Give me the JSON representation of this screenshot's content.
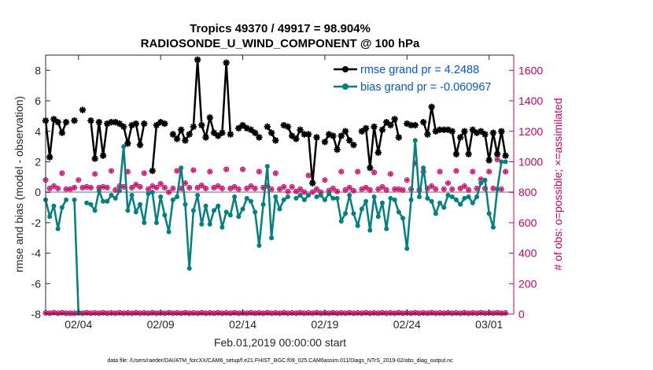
{
  "chart_data": {
    "type": "line",
    "title_line1": "Tropics 49370 / 49917 = 98.904%",
    "title_line2": "RADIOSONDE_U_WIND_COMPONENT @ 100 hPa",
    "xlabel": "Feb.01,2019 00:00:00 start",
    "ylabel_left": "rmse and bias (model - observation)",
    "ylabel_right": "# of obs: o=possible; ×=assimilated",
    "footer": "data file: /Users/raeder/DAI/ATM_forcXX/CAM6_setup/f.e21.FHIST_BGC.f09_025.CAM6assim.011/Diags_NTrS_2019-02/obs_diag_output.nc",
    "xlim": [
      1,
      29.5
    ],
    "ylim_left": [
      -8,
      9
    ],
    "ylim_right": [
      0,
      1700
    ],
    "x_ticks": [
      3,
      8,
      13,
      18,
      23,
      28
    ],
    "x_tick_labels": [
      "02/04",
      "02/09",
      "02/14",
      "02/19",
      "02/24",
      "03/01"
    ],
    "y_left_ticks": [
      -8,
      -6,
      -4,
      -2,
      0,
      2,
      4,
      6,
      8
    ],
    "y_left_tick_labels": [
      "-8",
      "-6",
      "-4",
      "-2",
      "0",
      "2",
      "4",
      "6",
      "8"
    ],
    "y_right_ticks": [
      0,
      200,
      400,
      600,
      800,
      1000,
      1200,
      1400,
      1600
    ],
    "y_right_tick_labels": [
      "0",
      "200",
      "400",
      "600",
      "800",
      "1000",
      "1200",
      "1400",
      "1600"
    ],
    "legend": [
      {
        "label": "rmse grand pr = 4.2488",
        "color": "#000000"
      },
      {
        "label": "bias grand pr = -0.060967",
        "color": "#008080"
      }
    ],
    "colors": {
      "rmse": "#000000",
      "bias": "#008080",
      "obs": "#cc0066",
      "legend_text": "#0055ee",
      "zero_line": "#b0b0b0"
    },
    "series": [
      {
        "name": "rmse",
        "color": "#000000",
        "x": [
          1.0,
          1.25,
          1.5,
          1.75,
          2.0,
          2.25,
          2.5,
          2.75,
          3.0,
          3.25,
          3.5,
          3.75,
          4.0,
          4.25,
          4.5,
          4.75,
          5.0,
          5.25,
          5.5,
          5.75,
          6.0,
          6.25,
          6.5,
          6.75,
          7.0,
          7.25,
          7.5,
          7.75,
          8.0,
          8.25,
          8.5,
          8.75,
          9.0,
          9.25,
          9.5,
          9.75,
          10.0,
          10.25,
          10.5,
          10.75,
          11.0,
          11.25,
          11.5,
          11.75,
          12.0,
          12.25,
          12.5,
          12.75,
          13.0,
          13.25,
          13.5,
          13.75,
          14.0,
          14.25,
          14.5,
          14.75,
          15.0,
          15.25,
          15.5,
          15.75,
          16.0,
          16.25,
          16.5,
          16.75,
          17.0,
          17.25,
          17.5,
          17.75,
          18.0,
          18.25,
          18.5,
          18.75,
          19.0,
          19.25,
          19.5,
          19.75,
          20.0,
          20.25,
          20.5,
          20.75,
          21.0,
          21.25,
          21.5,
          21.75,
          22.0,
          22.25,
          22.5,
          22.75,
          23.0,
          23.25,
          23.5,
          23.75,
          24.0,
          24.25,
          24.5,
          24.75,
          25.0,
          25.25,
          25.5,
          25.75,
          26.0,
          26.25,
          26.5,
          26.75,
          27.0,
          27.25,
          27.5,
          27.75,
          28.0,
          28.25,
          28.5,
          28.75,
          29.0
        ],
        "values": [
          4.7,
          2.3,
          4.8,
          4.6,
          3.9,
          4.6,
          null,
          4.7,
          null,
          5.4,
          null,
          4.7,
          2.2,
          4.6,
          2.4,
          4.5,
          4.6,
          4.6,
          4.5,
          4.3,
          3.2,
          4.4,
          4.5,
          3.1,
          4.5,
          null,
          1.4,
          4.4,
          4.6,
          4.5,
          null,
          3.8,
          3.5,
          4.1,
          3.4,
          3.8,
          4.3,
          8.7,
          4.4,
          3.6,
          4.9,
          3.9,
          3.7,
          3.9,
          8.5,
          3.8,
          null,
          4.2,
          4.4,
          4.2,
          4.1,
          3.9,
          3.6,
          null,
          4.3,
          3.9,
          3.4,
          null,
          4.4,
          4.3,
          3.7,
          3.5,
          4.1,
          3.8,
          3.8,
          0.6,
          3.6,
          null,
          3.3,
          3.8,
          3.7,
          2.8,
          3.7,
          4.0,
          3.4,
          3.1,
          null,
          4.0,
          4.2,
          1.6,
          4.3,
          2.6,
          4.1,
          4.6,
          4.4,
          4.8,
          3.6,
          null,
          4.5,
          4.4,
          4.4,
          null,
          4.6,
          3.8,
          5.6,
          4.0,
          4.1,
          4.1,
          4.1,
          4.0,
          2.5,
          3.6,
          4.0,
          2.5,
          4.1,
          3.9,
          4.0,
          3.8,
          2.1,
          3.9,
          2.5,
          4.0,
          2.4
        ]
      },
      {
        "name": "bias",
        "color": "#008080",
        "x": [
          1.0,
          1.25,
          1.5,
          1.75,
          2.0,
          2.25,
          2.5,
          2.75,
          3.0,
          3.25,
          3.5,
          3.75,
          4.0,
          4.25,
          4.5,
          4.75,
          5.0,
          5.25,
          5.5,
          5.75,
          6.0,
          6.25,
          6.5,
          6.75,
          7.0,
          7.25,
          7.5,
          7.75,
          8.0,
          8.25,
          8.5,
          8.75,
          9.0,
          9.25,
          9.5,
          9.75,
          10.0,
          10.25,
          10.5,
          10.75,
          11.0,
          11.25,
          11.5,
          11.75,
          12.0,
          12.25,
          12.5,
          12.75,
          13.0,
          13.25,
          13.5,
          13.75,
          14.0,
          14.25,
          14.5,
          14.75,
          15.0,
          15.25,
          15.5,
          15.75,
          16.0,
          16.25,
          16.5,
          16.75,
          17.0,
          17.25,
          17.5,
          17.75,
          18.0,
          18.25,
          18.5,
          18.75,
          19.0,
          19.25,
          19.5,
          19.75,
          20.0,
          20.25,
          20.5,
          20.75,
          21.0,
          21.25,
          21.5,
          21.75,
          22.0,
          22.25,
          22.5,
          22.75,
          23.0,
          23.25,
          23.5,
          23.75,
          24.0,
          24.25,
          24.5,
          24.75,
          25.0,
          25.25,
          25.5,
          25.75,
          26.0,
          26.25,
          26.5,
          26.75,
          27.0,
          27.25,
          27.5,
          27.75,
          28.0,
          28.25,
          28.5,
          28.75,
          29.0
        ],
        "values": [
          -0.5,
          -1.6,
          -0.9,
          -2.4,
          -1.0,
          -0.5,
          null,
          -0.5,
          -7.9,
          null,
          -0.7,
          -0.8,
          -1.2,
          0.1,
          -0.6,
          -0.6,
          -0.2,
          -0.4,
          0.1,
          3.0,
          -1.2,
          -0.2,
          -1.3,
          -0.8,
          -2.0,
          -0.1,
          0.0,
          -2.0,
          -0.3,
          -1.5,
          -2.6,
          -0.5,
          -0.3,
          1.6,
          -0.8,
          -5.0,
          -1.2,
          -0.2,
          -2.1,
          -0.9,
          -2.1,
          -1.2,
          -0.9,
          -2.3,
          -1.3,
          -1.5,
          -0.3,
          -1.6,
          -1.1,
          -0.4,
          -0.6,
          -1.3,
          -3.5,
          -0.8,
          1.7,
          -3.0,
          -0.3,
          -1.1,
          -0.5,
          -0.3,
          null,
          -0.4,
          -0.2,
          -0.5,
          -0.2,
          null,
          -0.3,
          -0.2,
          -0.5,
          -0.1,
          -0.4,
          -0.4,
          -1.9,
          -1.4,
          -0.2,
          -1.4,
          -2.2,
          -1.1,
          -0.6,
          -2.5,
          -0.3,
          -1.6,
          -0.7,
          -2.4,
          -0.4,
          -0.5,
          -1.3,
          -1.7,
          -3.7,
          -0.5,
          3.4,
          -0.3,
          1.6,
          -0.4,
          -0.6,
          -1.4,
          -0.7,
          -1.0,
          -0.2,
          -0.3,
          -0.5,
          -0.8,
          -0.4,
          -0.3,
          -0.7,
          -0.3,
          0.6,
          0.8,
          -1.4,
          -2.3,
          0.2,
          2.0,
          2.0
        ]
      }
    ],
    "obs_possible": {
      "x": [
        1.0,
        1.25,
        1.5,
        1.75,
        2.0,
        2.25,
        2.5,
        2.75,
        3.0,
        3.25,
        3.5,
        3.75,
        4.0,
        4.25,
        4.5,
        4.75,
        5.0,
        5.25,
        5.5,
        5.75,
        6.0,
        6.25,
        6.5,
        6.75,
        7.0,
        7.25,
        7.5,
        7.75,
        8.0,
        8.25,
        8.5,
        8.75,
        9.0,
        9.25,
        9.5,
        9.75,
        10.0,
        10.25,
        10.5,
        10.75,
        11.0,
        11.25,
        11.5,
        11.75,
        12.0,
        12.25,
        12.5,
        12.75,
        13.0,
        13.25,
        13.5,
        13.75,
        14.0,
        14.25,
        14.5,
        14.75,
        15.0,
        15.25,
        15.5,
        15.75,
        16.0,
        16.25,
        16.5,
        16.75,
        17.0,
        17.25,
        17.5,
        17.75,
        18.0,
        18.25,
        18.5,
        18.75,
        19.0,
        19.25,
        19.5,
        19.75,
        20.0,
        20.25,
        20.5,
        20.75,
        21.0,
        21.25,
        21.5,
        21.75,
        22.0,
        22.25,
        22.5,
        22.75,
        23.0,
        23.25,
        23.5,
        23.75,
        24.0,
        24.25,
        24.5,
        24.75,
        25.0,
        25.25,
        25.5,
        25.75,
        26.0,
        26.25,
        26.5,
        26.75,
        27.0,
        27.25,
        27.5,
        27.75,
        28.0,
        28.25,
        28.5,
        28.75,
        29.0
      ],
      "values": [
        880,
        825,
        840,
        825,
        925,
        820,
        820,
        830,
        880,
        830,
        835,
        830,
        920,
        830,
        835,
        830,
        940,
        815,
        840,
        835,
        935,
        830,
        850,
        835,
        925,
        820,
        840,
        830,
        855,
        830,
        800,
        825,
        940,
        825,
        860,
        830,
        945,
        830,
        845,
        825,
        935,
        830,
        840,
        825,
        950,
        825,
        835,
        820,
        950,
        825,
        840,
        825,
        935,
        830,
        840,
        820,
        925,
        820,
        835,
        805,
        835,
        805,
        820,
        800,
        910,
        800,
        820,
        800,
        880,
        810,
        825,
        805,
        935,
        815,
        830,
        810,
        935,
        820,
        830,
        815,
        930,
        820,
        835,
        815,
        920,
        820,
        820,
        815,
        880,
        820,
        990,
        815,
        935,
        825,
        840,
        820,
        935,
        820,
        860,
        820,
        940,
        825,
        840,
        815,
        935,
        825,
        885,
        825,
        935,
        825,
        1015,
        820,
        935
      ],
      "bottom_values": [
        8,
        6,
        10,
        6,
        9,
        6,
        6,
        6,
        8,
        6,
        9,
        6,
        8,
        6,
        9,
        6,
        8,
        6,
        9,
        6,
        8,
        6,
        9,
        6,
        8,
        6,
        9,
        6,
        8,
        6,
        9,
        6,
        8,
        6,
        9,
        6,
        8,
        6,
        9,
        6,
        8,
        6,
        9,
        6,
        8,
        6,
        9,
        6,
        8,
        6,
        9,
        6,
        8,
        6,
        9,
        6,
        8,
        6,
        9,
        6,
        8,
        6,
        9,
        6,
        8,
        6,
        9,
        6,
        8,
        6,
        9,
        6,
        8,
        6,
        9,
        6,
        8,
        6,
        9,
        6,
        8,
        6,
        9,
        6,
        8,
        6,
        9,
        6,
        8,
        6,
        9,
        6,
        8,
        6,
        9,
        6,
        8,
        6,
        9,
        6,
        8,
        6,
        9,
        6,
        8,
        6,
        9,
        6,
        8,
        6,
        9,
        6,
        8
      ]
    }
  }
}
